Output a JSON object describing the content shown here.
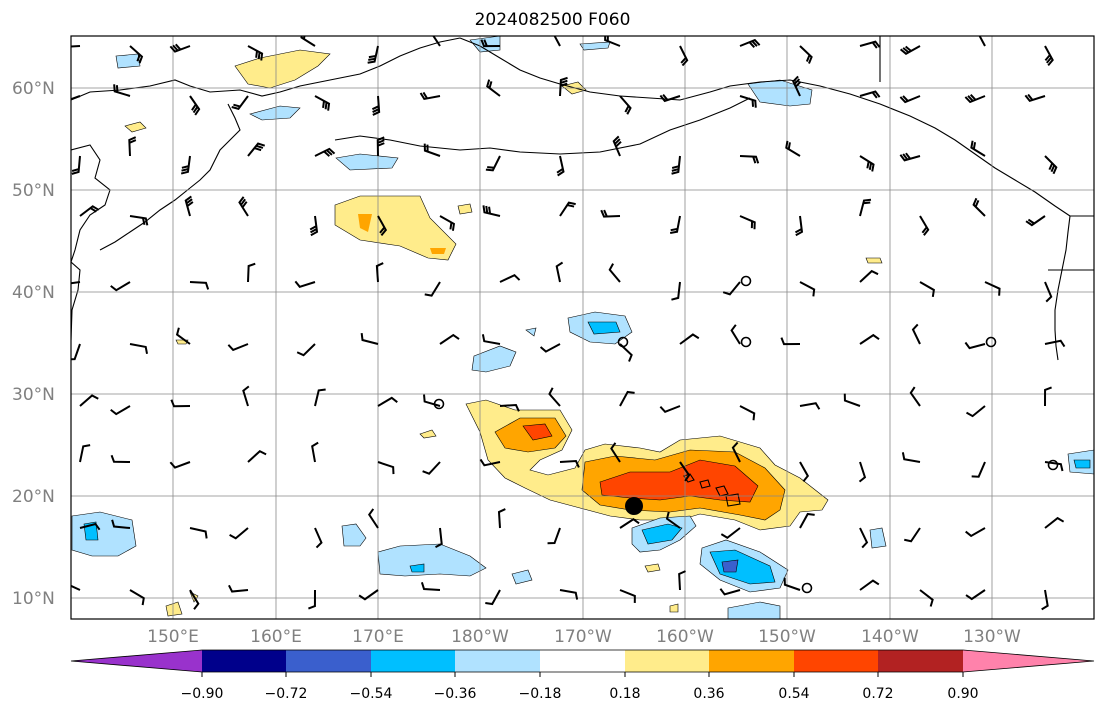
{
  "title": "2024082500 F060",
  "lat_labels": [
    "60°N",
    "50°N",
    "40°N",
    "30°N",
    "20°N",
    "10°N"
  ],
  "lon_labels": [
    "150°E",
    "160°E",
    "170°E",
    "180°W",
    "170°W",
    "160°W",
    "150°W",
    "140°W",
    "130°W"
  ],
  "colorbar": {
    "ticks": [
      "−0.90",
      "−0.72",
      "−0.54",
      "−0.36",
      "−0.18",
      "0.18",
      "0.36",
      "0.54",
      "0.72",
      "0.90"
    ],
    "colors": [
      "#9932cc",
      "#00008b",
      "#3a5fcd",
      "#00bfff",
      "#b0e2ff",
      "#ffffff",
      "#ffec8b",
      "#ffa500",
      "#ff4500",
      "#b22222",
      "#ff82ab"
    ]
  },
  "marker": {
    "label": "storm-center-marker",
    "lat": 19,
    "lon": -165
  },
  "map_extent": {
    "lon_min": 140,
    "lon_max": 240,
    "lat_min": 8,
    "lat_max": 65
  }
}
